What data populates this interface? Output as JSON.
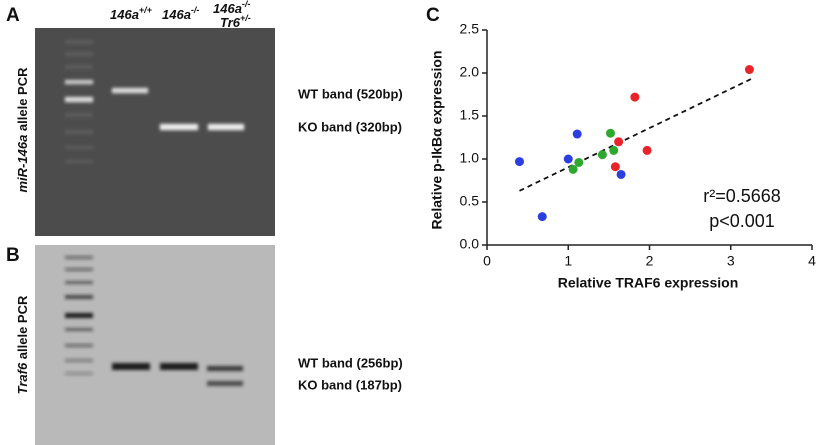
{
  "panels": {
    "A": {
      "letter": "A",
      "lanes": [
        {
          "name": "146a",
          "sup": "+/+"
        },
        {
          "name": "146a",
          "sup": "-/-"
        },
        {
          "name": "146a",
          "sup": "-/-",
          "name2": "Tr6",
          "sup2": "+/-"
        }
      ],
      "ylabel": {
        "italic": "miR-146a",
        "text": " allele PCR"
      },
      "bands": [
        "WT band (520bp)",
        "KO band (320bp)"
      ]
    },
    "B": {
      "letter": "B",
      "ylabel": {
        "italic": "Traf6",
        "text": " allele PCR"
      },
      "bands": [
        "WT band (256bp)",
        "KO band (187bp)"
      ]
    }
  },
  "chart_data": {
    "type": "scatter",
    "letter": "C",
    "xlabel": "Relative TRAF6 expression",
    "ylabel": "Relative p-IkBα expression",
    "xlim": [
      0,
      4
    ],
    "xticks": [
      0,
      1,
      2,
      3,
      4
    ],
    "ylim": [
      0,
      2.5
    ],
    "yticks": [
      {
        "value": 0,
        "label": "0.0"
      },
      0.5,
      {
        "value": 1,
        "label": "1.0"
      },
      1.5,
      {
        "value": 2,
        "label": "2.0"
      },
      2.5
    ],
    "series": [
      {
        "color": "#e8242a",
        "x": [
          3.23,
          1.82,
          1.62,
          1.58,
          1.97
        ],
        "y": [
          2.04,
          1.72,
          1.2,
          0.91,
          1.1
        ]
      },
      {
        "color": "#2b3fe0",
        "x": [
          0.4,
          0.68,
          1.0,
          1.11,
          1.65
        ],
        "y": [
          0.97,
          0.33,
          1.0,
          1.29,
          0.82
        ]
      },
      {
        "color": "#2ea82e",
        "x": [
          1.52,
          1.56,
          1.42,
          1.13,
          1.06
        ],
        "y": [
          1.3,
          1.1,
          1.05,
          0.96,
          0.88
        ]
      }
    ],
    "trendline": {
      "x": [
        0.4,
        3.25
      ],
      "y": [
        0.63,
        1.93
      ]
    },
    "annotations": [
      "r²=0.5668",
      "p<0.001"
    ]
  }
}
